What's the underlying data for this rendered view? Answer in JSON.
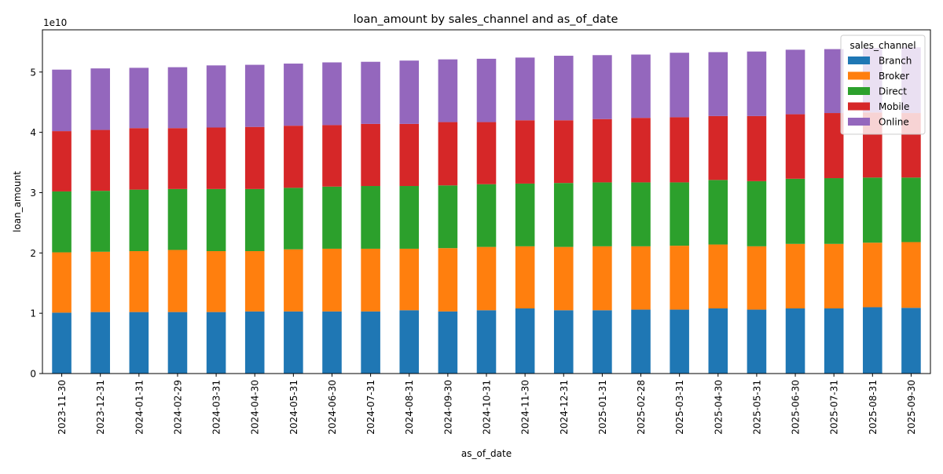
{
  "chart_data": {
    "type": "bar",
    "stacked": true,
    "title": "loan_amount by sales_channel and as_of_date",
    "xlabel": "as_of_date",
    "ylabel": "loan_amount",
    "y_offset_label": "1e10",
    "ylim_units_1e10": [
      0,
      5.7
    ],
    "yticks": [
      0,
      1,
      2,
      3,
      4,
      5
    ],
    "grid": false,
    "legend_title": "sales_channel",
    "legend_position": "top-right",
    "categories": [
      "2023-11-30",
      "2023-12-31",
      "2024-01-31",
      "2024-02-29",
      "2024-03-31",
      "2024-04-30",
      "2024-05-31",
      "2024-06-30",
      "2024-07-31",
      "2024-08-31",
      "2024-09-30",
      "2024-10-31",
      "2024-11-30",
      "2024-12-31",
      "2025-01-31",
      "2025-02-28",
      "2025-03-31",
      "2025-04-30",
      "2025-05-31",
      "2025-06-30",
      "2025-07-31",
      "2025-08-31",
      "2025-09-30"
    ],
    "series": [
      {
        "name": "Branch",
        "color": "#1f77b4",
        "values": [
          1.01,
          1.02,
          1.02,
          1.02,
          1.02,
          1.03,
          1.03,
          1.03,
          1.03,
          1.05,
          1.03,
          1.05,
          1.08,
          1.05,
          1.05,
          1.06,
          1.06,
          1.08,
          1.06,
          1.08,
          1.08,
          1.1,
          1.09
        ]
      },
      {
        "name": "Broker",
        "color": "#ff7f0e",
        "values": [
          1.0,
          1.0,
          1.01,
          1.03,
          1.01,
          1.0,
          1.03,
          1.04,
          1.04,
          1.02,
          1.05,
          1.05,
          1.03,
          1.05,
          1.06,
          1.05,
          1.06,
          1.06,
          1.05,
          1.07,
          1.07,
          1.07,
          1.09
        ]
      },
      {
        "name": "Direct",
        "color": "#2ca02c",
        "values": [
          1.01,
          1.01,
          1.02,
          1.01,
          1.03,
          1.03,
          1.02,
          1.03,
          1.04,
          1.04,
          1.04,
          1.04,
          1.04,
          1.06,
          1.06,
          1.06,
          1.05,
          1.07,
          1.08,
          1.08,
          1.09,
          1.08,
          1.07
        ]
      },
      {
        "name": "Mobile",
        "color": "#d62728",
        "values": [
          1.0,
          1.01,
          1.02,
          1.01,
          1.02,
          1.03,
          1.03,
          1.02,
          1.03,
          1.03,
          1.05,
          1.03,
          1.05,
          1.04,
          1.05,
          1.07,
          1.08,
          1.06,
          1.08,
          1.07,
          1.08,
          1.08,
          1.07
        ]
      },
      {
        "name": "Online",
        "color": "#9467bd",
        "values": [
          1.02,
          1.02,
          1.0,
          1.01,
          1.03,
          1.03,
          1.03,
          1.04,
          1.03,
          1.05,
          1.04,
          1.05,
          1.04,
          1.07,
          1.06,
          1.05,
          1.07,
          1.06,
          1.07,
          1.07,
          1.06,
          1.07,
          1.09
        ]
      }
    ]
  }
}
